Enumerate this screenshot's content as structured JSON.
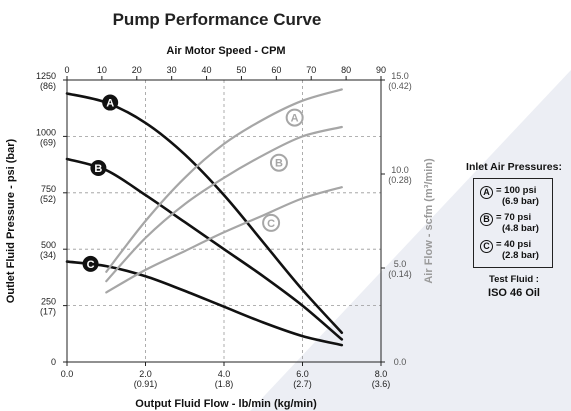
{
  "chart_data": {
    "type": "line",
    "title": "Pump Performance Curve",
    "x_bottom": {
      "label": "Output Fluid Flow - lb/min (kg/min)",
      "range": [
        0,
        8
      ],
      "ticks": [
        {
          "value": 0,
          "label": "0.0",
          "sub": ""
        },
        {
          "value": 2,
          "label": "2.0",
          "sub": "(0.91)"
        },
        {
          "value": 4,
          "label": "4.0",
          "sub": "(1.8)"
        },
        {
          "value": 6,
          "label": "6.0",
          "sub": "(2.7)"
        },
        {
          "value": 8,
          "label": "8.0",
          "sub": "(3.6)"
        }
      ]
    },
    "x_top": {
      "label": "Air Motor Speed - CPM",
      "range": [
        0,
        90
      ],
      "ticks": [
        0,
        10,
        20,
        30,
        40,
        50,
        60,
        70,
        80,
        90
      ]
    },
    "y_left": {
      "label": "Outlet Fluid Pressure - psi (bar)",
      "range": [
        0,
        1250
      ],
      "ticks": [
        {
          "value": 0,
          "label": "0",
          "sub": ""
        },
        {
          "value": 250,
          "label": "250",
          "sub": "(17)"
        },
        {
          "value": 500,
          "label": "500",
          "sub": "(34)"
        },
        {
          "value": 750,
          "label": "750",
          "sub": "(52)"
        },
        {
          "value": 1000,
          "label": "1000",
          "sub": "(69)"
        },
        {
          "value": 1250,
          "label": "1250",
          "sub": "(86)"
        }
      ]
    },
    "y_right": {
      "label": "Air Flow - scfm (m³/min)",
      "range": [
        0,
        15
      ],
      "ticks": [
        {
          "value": 0,
          "label": "0.0",
          "sub": ""
        },
        {
          "value": 5,
          "label": "5.0",
          "sub": "(0.14)"
        },
        {
          "value": 10,
          "label": "10.0",
          "sub": "(0.28)"
        },
        {
          "value": 15,
          "label": "15.0",
          "sub": "(0.42)"
        }
      ]
    },
    "grid": true,
    "series": [
      {
        "name": "A",
        "kind": "pressure",
        "axis": "left",
        "color": "#111111",
        "x": [
          0,
          1,
          2,
          3,
          4,
          5,
          6,
          7
        ],
        "y": [
          1190,
          1150,
          1060,
          920,
          740,
          530,
          320,
          130
        ]
      },
      {
        "name": "B",
        "kind": "pressure",
        "axis": "left",
        "color": "#111111",
        "x": [
          0,
          1,
          2,
          3,
          4,
          5,
          6,
          7
        ],
        "y": [
          900,
          850,
          740,
          620,
          500,
          380,
          250,
          100
        ]
      },
      {
        "name": "C",
        "kind": "pressure",
        "axis": "left",
        "color": "#111111",
        "x": [
          0,
          1,
          2,
          3,
          4,
          5,
          6,
          7
        ],
        "y": [
          445,
          425,
          380,
          315,
          245,
          175,
          115,
          75
        ]
      },
      {
        "name": "A",
        "kind": "airflow",
        "axis": "right",
        "color": "#a6a6a6",
        "x": [
          1,
          2,
          3,
          4,
          5,
          6,
          7
        ],
        "y": [
          4.8,
          7.5,
          9.8,
          11.6,
          12.9,
          13.9,
          14.5
        ]
      },
      {
        "name": "B",
        "kind": "airflow",
        "axis": "right",
        "color": "#a6a6a6",
        "x": [
          1,
          2,
          3,
          4,
          5,
          6,
          7
        ],
        "y": [
          4.3,
          6.6,
          8.4,
          9.8,
          11.0,
          12.0,
          12.5
        ]
      },
      {
        "name": "C",
        "kind": "airflow",
        "axis": "right",
        "color": "#a6a6a6",
        "x": [
          1,
          2,
          3,
          4,
          5,
          6,
          7
        ],
        "y": [
          3.7,
          4.9,
          5.9,
          6.9,
          7.8,
          8.7,
          9.3
        ]
      }
    ],
    "curve_labels": [
      {
        "letter": "A",
        "kind": "pressure",
        "x": 1.1,
        "y": 1150
      },
      {
        "letter": "B",
        "kind": "pressure",
        "x": 0.8,
        "y": 860
      },
      {
        "letter": "C",
        "kind": "pressure",
        "x": 0.6,
        "y": 435
      },
      {
        "letter": "A",
        "kind": "airflow",
        "x": 5.8,
        "y": 13.0
      },
      {
        "letter": "B",
        "kind": "airflow",
        "x": 5.4,
        "y": 10.6
      },
      {
        "letter": "C",
        "kind": "airflow",
        "x": 5.2,
        "y": 7.4
      }
    ],
    "legend": {
      "title": "Inlet Air Pressures:",
      "position": "right",
      "entries": [
        {
          "letter": "A",
          "line1": "= 100 psi",
          "line2": "(6.9 bar)"
        },
        {
          "letter": "B",
          "line1": "= 70 psi",
          "line2": "(4.8 bar)"
        },
        {
          "letter": "C",
          "line1": "= 40 psi",
          "line2": "(2.8 bar)"
        }
      ]
    },
    "test_fluid": {
      "label": "Test Fluid :",
      "value": "ISO 46 Oil"
    }
  }
}
